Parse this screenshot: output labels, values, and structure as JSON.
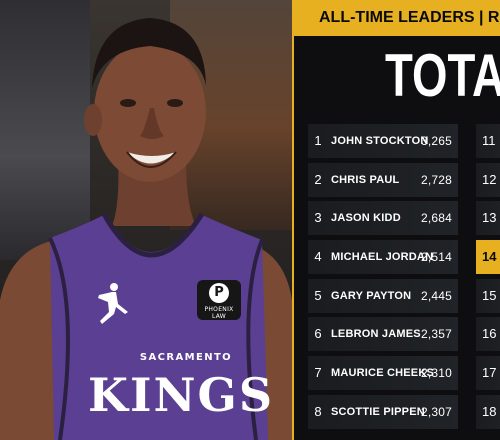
{
  "jersey": {
    "city": "SACRAMENTO",
    "team": "KINGS",
    "patch_text": "PHOENIX LAW",
    "brand_logo": "jordan-jumpman-icon"
  },
  "panel": {
    "header": "ALL-TIME LEADERS | RE",
    "title": "TOTAL ST",
    "leaders": [
      {
        "rank": "1",
        "name": "JOHN STOCKTON",
        "value": "3,265"
      },
      {
        "rank": "2",
        "name": "CHRIS PAUL",
        "value": "2,728"
      },
      {
        "rank": "3",
        "name": "JASON KIDD",
        "value": "2,684"
      },
      {
        "rank": "4",
        "name": "MICHAEL JORDAN",
        "value": "2,514"
      },
      {
        "rank": "5",
        "name": "GARY PAYTON",
        "value": "2,445"
      },
      {
        "rank": "6",
        "name": "LEBRON JAMES",
        "value": "2,357"
      },
      {
        "rank": "7",
        "name": "MAURICE CHEEKS",
        "value": "2,310"
      },
      {
        "rank": "8",
        "name": "SCOTTIE PIPPEN",
        "value": "2,307"
      }
    ],
    "second_column": [
      {
        "rank": "11",
        "highlight": false
      },
      {
        "rank": "12",
        "highlight": false
      },
      {
        "rank": "13",
        "highlight": false
      },
      {
        "rank": "14",
        "highlight": true
      },
      {
        "rank": "15",
        "highlight": false
      },
      {
        "rank": "16",
        "highlight": false
      },
      {
        "rank": "17",
        "highlight": false
      },
      {
        "rank": "18",
        "highlight": false
      }
    ]
  },
  "colors": {
    "accent": "#e7b020",
    "jersey_purple": "#5b3f93",
    "panel_bg": "#0e0e10",
    "row_bg": "#1d1f23"
  }
}
